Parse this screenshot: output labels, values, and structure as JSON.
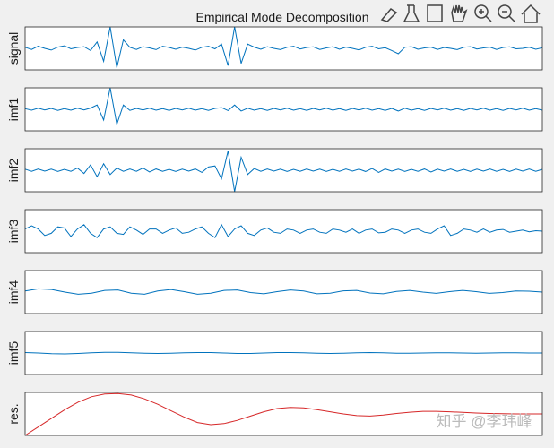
{
  "chart_data": [
    {
      "type": "line",
      "title": "Empirical Mode Decomposition",
      "ylabel": "signal",
      "color": "#0072bd",
      "ylim": [
        -1,
        1
      ],
      "values": [
        0.05,
        -0.05,
        0.1,
        0,
        -0.08,
        0.06,
        0.12,
        -0.02,
        0.04,
        0.08,
        -0.1,
        0.3,
        -0.6,
        1,
        -0.9,
        0.4,
        0.05,
        -0.05,
        0.08,
        0.02,
        -0.06,
        0.1,
        0.04,
        -0.04,
        0.06,
        0,
        -0.08,
        0.05,
        0.1,
        -0.02,
        0.2,
        -0.8,
        1,
        -0.7,
        0.2,
        0.06,
        -0.04,
        0.08,
        0,
        -0.06,
        0.05,
        0.1,
        -0.03,
        0.04,
        0.07,
        -0.05,
        0.02,
        0.08,
        -0.04,
        0.06,
        0,
        -0.07,
        0.05,
        0.1,
        -0.02,
        0.03,
        -0.1,
        -0.25,
        0.05,
        0.08,
        -0.04,
        0.02,
        0.06,
        -0.05,
        0.04,
        0,
        -0.06,
        0.05,
        0.08,
        -0.03,
        0.02,
        0.06,
        -0.05,
        0.04,
        0.07,
        -0.02,
        0,
        0.05,
        -0.04,
        0.03
      ]
    },
    {
      "type": "line",
      "ylabel": "imf1",
      "color": "#0072bd",
      "ylim": [
        -1,
        1
      ],
      "values": [
        0.03,
        -0.04,
        0.05,
        -0.03,
        0.04,
        -0.05,
        0.03,
        -0.04,
        0.05,
        -0.03,
        0.06,
        0.2,
        -0.5,
        1,
        -0.7,
        0.2,
        -0.05,
        0.04,
        -0.03,
        0.05,
        -0.04,
        0.03,
        -0.05,
        0.04,
        -0.03,
        0.05,
        -0.04,
        0.03,
        -0.05,
        0.04,
        0.08,
        -0.06,
        0.2,
        -0.08,
        0.05,
        -0.04,
        0.03,
        -0.05,
        0.04,
        -0.03,
        0.05,
        -0.04,
        0.03,
        -0.05,
        0.04,
        -0.03,
        0.05,
        -0.04,
        0.03,
        -0.05,
        0.04,
        -0.03,
        0.05,
        -0.04,
        0.03,
        -0.05,
        0.04,
        -0.08,
        0.05,
        -0.04,
        0.03,
        -0.05,
        0.04,
        -0.03,
        0.05,
        -0.04,
        0.03,
        -0.05,
        0.04,
        -0.03,
        0.05,
        -0.04,
        0.03,
        -0.05,
        0.04,
        -0.03,
        0.05,
        -0.04,
        0.03,
        -0.04
      ]
    },
    {
      "type": "line",
      "ylabel": "imf2",
      "color": "#0072bd",
      "ylim": [
        -1,
        1
      ],
      "values": [
        0.05,
        -0.05,
        0.06,
        -0.04,
        0.05,
        -0.06,
        0.04,
        -0.05,
        0.1,
        -0.15,
        0.25,
        -0.3,
        0.3,
        -0.2,
        0.1,
        -0.05,
        0.06,
        -0.05,
        0.1,
        -0.08,
        0.06,
        -0.05,
        0.04,
        -0.06,
        0.05,
        -0.04,
        0.06,
        -0.1,
        0.15,
        0.2,
        -0.4,
        0.9,
        -1,
        0.6,
        -0.2,
        0.08,
        -0.05,
        0.06,
        -0.04,
        0.05,
        -0.06,
        0.04,
        -0.05,
        0.06,
        -0.04,
        0.05,
        -0.06,
        0.04,
        -0.05,
        0.06,
        -0.04,
        0.05,
        -0.06,
        0.08,
        -0.1,
        0.06,
        -0.04,
        0.05,
        -0.06,
        0.04,
        -0.05,
        0.06,
        -0.08,
        0.05,
        -0.04,
        0.06,
        -0.05,
        0.04,
        -0.06,
        0.05,
        -0.04,
        0.06,
        -0.05,
        0.04,
        -0.06,
        0.05,
        -0.04,
        0.06,
        -0.05,
        0.04
      ]
    },
    {
      "type": "line",
      "ylabel": "imf3",
      "color": "#0072bd",
      "ylim": [
        -1,
        1
      ],
      "values": [
        0.1,
        0.25,
        0.1,
        -0.2,
        -0.1,
        0.2,
        0.15,
        -0.25,
        0.1,
        0.3,
        -0.1,
        -0.3,
        0.1,
        0.2,
        -0.1,
        -0.15,
        0.2,
        0.05,
        -0.15,
        0.1,
        0.1,
        -0.1,
        0.05,
        0.15,
        -0.1,
        -0.05,
        0.1,
        0.2,
        -0.1,
        -0.3,
        0.3,
        -0.25,
        0.1,
        0.25,
        -0.1,
        -0.2,
        0.05,
        0.15,
        -0.05,
        -0.1,
        0.1,
        0.05,
        -0.1,
        0.05,
        0.1,
        -0.05,
        -0.1,
        0.1,
        0.05,
        -0.05,
        0.1,
        -0.1,
        0.05,
        0.1,
        -0.08,
        -0.05,
        0.1,
        0.05,
        -0.1,
        0.05,
        0.1,
        -0.05,
        -0.1,
        0.1,
        0.25,
        -0.2,
        -0.1,
        0.1,
        0.05,
        -0.05,
        0.1,
        -0.05,
        0.05,
        0.08,
        -0.05,
        0,
        0.05,
        -0.03,
        0.02,
        0
      ]
    },
    {
      "type": "line",
      "ylabel": "imf4",
      "color": "#0072bd",
      "ylim": [
        -1,
        1
      ],
      "values": [
        0.05,
        0.15,
        0.12,
        0,
        -0.1,
        -0.05,
        0.08,
        0.1,
        -0.05,
        -0.1,
        0.05,
        0.12,
        0.02,
        -0.1,
        -0.05,
        0.08,
        0.1,
        -0.02,
        -0.08,
        0.02,
        0.1,
        0.05,
        -0.08,
        -0.05,
        0.06,
        0.08,
        -0.04,
        -0.08,
        0.03,
        0.08,
        0,
        -0.06,
        0.02,
        0.08,
        0.02,
        -0.06,
        -0.02,
        0.05,
        0.04,
        0
      ]
    },
    {
      "type": "line",
      "ylabel": "imf5",
      "color": "#0072bd",
      "ylim": [
        -1,
        1
      ],
      "values": [
        0.02,
        0,
        -0.03,
        -0.04,
        -0.02,
        0.01,
        0.03,
        0.03,
        0.01,
        -0.01,
        -0.02,
        -0.01,
        0.01,
        0.02,
        0.02,
        0,
        -0.02,
        -0.02,
        0,
        0.02,
        0.02,
        0.01,
        -0.01,
        -0.02,
        -0.01,
        0.01,
        0.02,
        0.01,
        -0.01,
        -0.01,
        0,
        0.01,
        0.01,
        0,
        -0.01,
        0,
        0.01,
        0.01,
        0,
        0
      ]
    },
    {
      "type": "line",
      "ylabel": "res.",
      "color": "#d62728",
      "ylim": [
        -1,
        1
      ],
      "values": [
        -1,
        -0.6,
        -0.2,
        0.2,
        0.55,
        0.8,
        0.93,
        0.95,
        0.88,
        0.7,
        0.45,
        0.15,
        -0.15,
        -0.4,
        -0.5,
        -0.45,
        -0.3,
        -0.1,
        0.1,
        0.25,
        0.3,
        0.28,
        0.2,
        0.1,
        0,
        -0.08,
        -0.1,
        -0.05,
        0.02,
        0.08,
        0.12,
        0.12,
        0.1,
        0.07,
        0.04,
        0.02,
        0.01,
        0,
        0,
        0
      ]
    }
  ],
  "watermark": "知乎 @李玮峰"
}
